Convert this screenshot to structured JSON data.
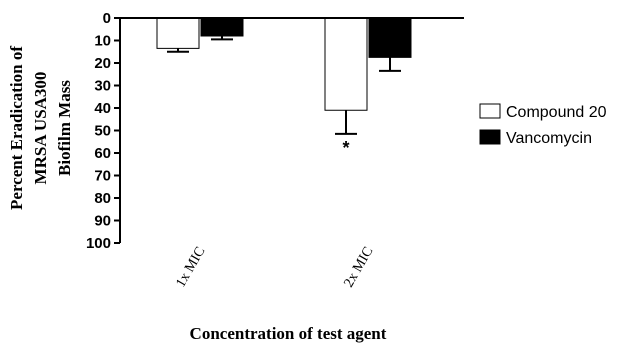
{
  "chart_data": {
    "type": "bar",
    "categories": [
      "1x MIC",
      "2x MIC"
    ],
    "series": [
      {
        "name": "Compound 20",
        "values": [
          13.5,
          41
        ],
        "errors": [
          1.5,
          10.5
        ],
        "color": "#ffffff"
      },
      {
        "name": "Vancomycin",
        "values": [
          8,
          17.5
        ],
        "errors": [
          1.5,
          6
        ],
        "color": "#000000"
      }
    ],
    "xlabel": "Concentration of test agent",
    "ylabel": [
      "Percent Eradication of",
      "MRSA USA300",
      "Biofilm Mass"
    ],
    "ylim": [
      0,
      100
    ],
    "y_inverted": true,
    "yticks": [
      0,
      10,
      20,
      30,
      40,
      50,
      60,
      70,
      80,
      90,
      100
    ],
    "annotations": [
      {
        "category": "2x MIC",
        "series": "Compound 20",
        "text": "*"
      }
    ],
    "legend_position": "right"
  }
}
